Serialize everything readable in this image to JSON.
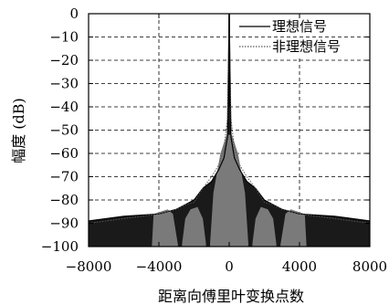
{
  "chart_data": {
    "type": "line",
    "xlabel": "距离向傅里叶变换点数",
    "ylabel": "幅度 (dB)",
    "xlim": [
      -8000,
      8000
    ],
    "ylim": [
      -100,
      0
    ],
    "x_ticks": [
      -8000,
      -4000,
      0,
      4000,
      8000
    ],
    "y_ticks": [
      0,
      -10,
      -20,
      -30,
      -40,
      -50,
      -60,
      -70,
      -80,
      -90,
      -100
    ],
    "x_tick_labels": [
      "−8000",
      "−4000",
      "0",
      "4000",
      "8000"
    ],
    "y_tick_labels": [
      "0",
      "−10",
      "−20",
      "−30",
      "−40",
      "−50",
      "−60",
      "−70",
      "−80",
      "−90",
      "−100"
    ],
    "grid": true,
    "grid_style": "dashed",
    "legend_position": "top-right",
    "series": [
      {
        "name": "理想信号",
        "line_style": "solid",
        "color": "#000000",
        "x": [
          -8000,
          -6000,
          -4000,
          -3000,
          -2500,
          -2000,
          -1500,
          -1000,
          -600,
          -300,
          -100,
          0,
          100,
          300,
          600,
          1000,
          1500,
          2000,
          2500,
          3000,
          4000,
          6000,
          8000
        ],
        "y": [
          -89,
          -87,
          -86,
          -84,
          -82,
          -80,
          -75,
          -72,
          -67,
          -62,
          -53,
          0,
          -53,
          -62,
          -67,
          -72,
          -75,
          -80,
          -82,
          -84,
          -86,
          -87,
          -89
        ]
      },
      {
        "name": "非理想信号",
        "line_style": "dotted",
        "color": "#555555",
        "x": [
          -8000,
          -6000,
          -4000,
          -3000,
          -2500,
          -2000,
          -1500,
          -1000,
          -600,
          -300,
          -100,
          0,
          100,
          300,
          600,
          1000,
          1500,
          2000,
          2500,
          3000,
          4000,
          6000,
          8000
        ],
        "y": [
          -90,
          -88,
          -86,
          -84,
          -82,
          -81,
          -75,
          -70,
          -65,
          -58,
          -45,
          0,
          -45,
          -58,
          -65,
          -70,
          -75,
          -81,
          -82,
          -84,
          -86,
          -88,
          -90
        ]
      }
    ]
  }
}
